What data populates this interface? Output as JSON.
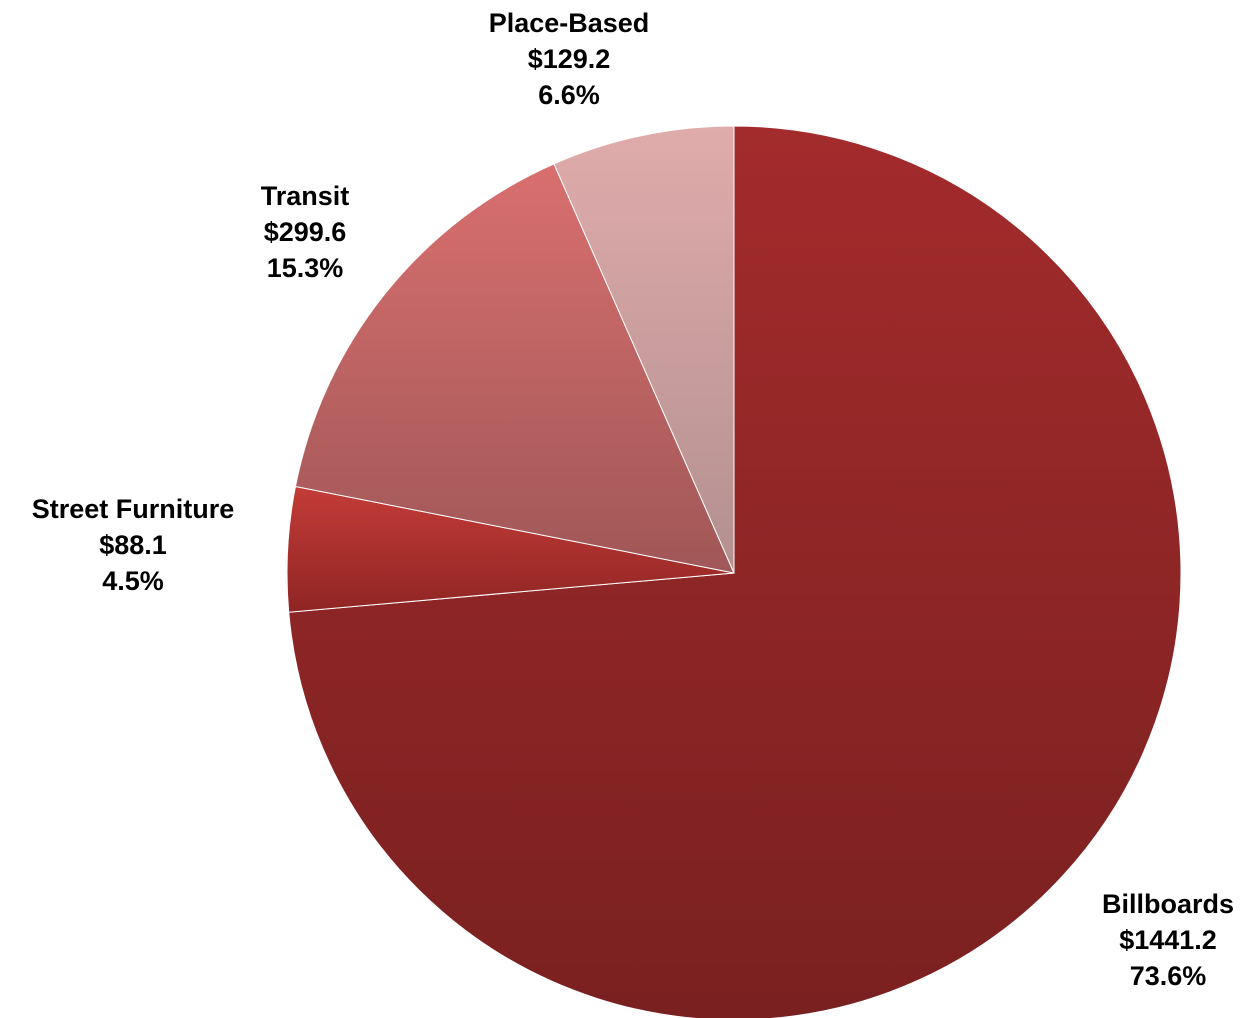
{
  "chart_data": {
    "type": "pie",
    "title": "",
    "start": "12 o'clock",
    "direction": "clockwise",
    "slices": [
      {
        "name": "Billboards",
        "value": 1441.2,
        "value_label": "$1441.2",
        "percent": 73.6,
        "percent_label": "73.6%",
        "color": "#8a2726"
      },
      {
        "name": "Street Furniture",
        "value": 88.1,
        "value_label": "$88.1",
        "percent": 4.5,
        "percent_label": "4.5%",
        "color": "#b33432"
      },
      {
        "name": "Transit",
        "value": 299.6,
        "value_label": "$299.6",
        "percent": 15.3,
        "percent_label": "15.3%",
        "color": "#b56262"
      },
      {
        "name": "Place-Based",
        "value": 129.2,
        "value_label": "$129.2",
        "percent": 6.6,
        "percent_label": "6.6%",
        "color": "#c9a0a0"
      }
    ]
  }
}
